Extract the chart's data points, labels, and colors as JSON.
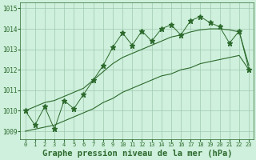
{
  "title": "Graphe pression niveau de la mer (hPa)",
  "x_labels": [
    "0",
    "1",
    "2",
    "3",
    "4",
    "5",
    "6",
    "7",
    "8",
    "9",
    "10",
    "11",
    "12",
    "13",
    "14",
    "15",
    "16",
    "17",
    "18",
    "19",
    "20",
    "21",
    "22",
    "23"
  ],
  "pressure_main": [
    1010.0,
    1009.3,
    1010.2,
    1009.1,
    1010.5,
    1010.1,
    1010.8,
    1011.5,
    1012.2,
    1013.1,
    1013.8,
    1013.2,
    1013.9,
    1013.4,
    1014.0,
    1014.2,
    1013.7,
    1014.4,
    1014.6,
    1014.3,
    1014.1,
    1013.3,
    1013.9,
    1012.0
  ],
  "pressure_smooth_low": [
    1009.0,
    1009.1,
    1009.2,
    1009.3,
    1009.5,
    1009.7,
    1009.9,
    1010.1,
    1010.4,
    1010.6,
    1010.9,
    1011.1,
    1011.3,
    1011.5,
    1011.7,
    1011.8,
    1012.0,
    1012.1,
    1012.3,
    1012.4,
    1012.5,
    1012.6,
    1012.7,
    1012.0
  ],
  "pressure_smooth_high": [
    1010.0,
    1010.2,
    1010.4,
    1010.5,
    1010.7,
    1010.9,
    1011.1,
    1011.5,
    1011.9,
    1012.3,
    1012.6,
    1012.8,
    1013.0,
    1013.2,
    1013.4,
    1013.6,
    1013.7,
    1013.85,
    1013.95,
    1014.0,
    1014.0,
    1013.95,
    1013.85,
    1012.2
  ],
  "ylim": [
    1008.6,
    1015.3
  ],
  "yticks": [
    1009,
    1010,
    1011,
    1012,
    1013,
    1014,
    1015
  ],
  "line_color": "#2d6a2d",
  "bg_color": "#cef0dc",
  "grid_color": "#a0c8b0",
  "title_fontsize": 7.5,
  "marker_size": 4.5,
  "figsize": [
    3.2,
    2.0
  ],
  "dpi": 100
}
